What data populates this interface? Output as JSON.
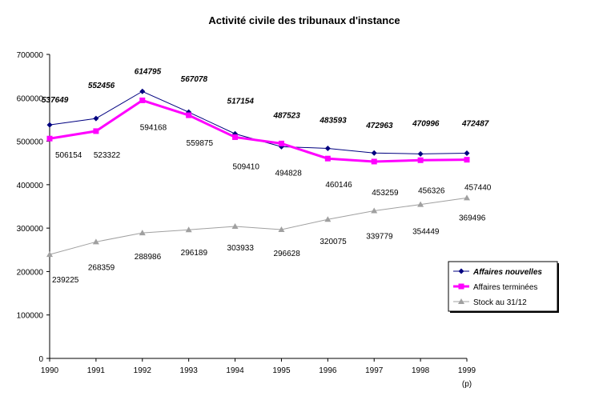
{
  "chart_data": {
    "type": "line",
    "title": "Activité civile des tribunaux d'instance",
    "x_note": "(p)",
    "categories": [
      "1990",
      "1991",
      "1992",
      "1993",
      "1994",
      "1995",
      "1996",
      "1997",
      "1998",
      "1999"
    ],
    "y_ticks": [
      "0",
      "100000",
      "200000",
      "300000",
      "400000",
      "500000",
      "600000",
      "700000"
    ],
    "ylim": [
      0,
      700000
    ],
    "grid": false,
    "legend_position": "right",
    "series": [
      {
        "name": "Affaires nouvelles",
        "color": "#000080",
        "marker": "diamond",
        "values": [
          537649,
          552456,
          614795,
          567078,
          517154,
          487523,
          483593,
          472963,
          470996,
          472487
        ],
        "labels": [
          "537649",
          "552456",
          "614795",
          "567078",
          "517154",
          "487523",
          "483593",
          "472963",
          "470996",
          "472487"
        ]
      },
      {
        "name": "Affaires terminées",
        "color": "#ff00ff",
        "marker": "square",
        "values": [
          506154,
          523322,
          594168,
          559875,
          509410,
          494828,
          460146,
          453259,
          456326,
          457440
        ],
        "labels": [
          "506154",
          "523322",
          "594168",
          "559875",
          "509410",
          "494828",
          "460146",
          "453259",
          "456326",
          "457440"
        ]
      },
      {
        "name": "Stock au 31/12",
        "color": "#a0a0a0",
        "marker": "triangle",
        "values": [
          239225,
          268359,
          288986,
          296189,
          303933,
          296628,
          320075,
          339779,
          354449,
          369496
        ],
        "labels": [
          "239225",
          "268359",
          "288986",
          "296189",
          "303933",
          "296628",
          "320075",
          "339779",
          "354449",
          "369496"
        ]
      }
    ]
  }
}
